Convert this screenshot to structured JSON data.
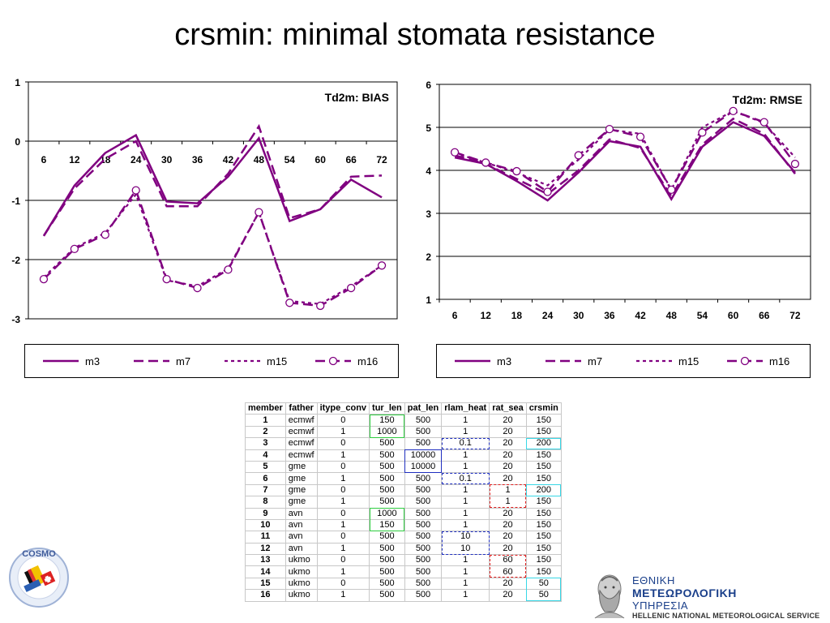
{
  "title": "crsmin: minimal stomata resistance",
  "chart_data": [
    {
      "type": "line",
      "title": "Td2m: BIAS",
      "x": [
        6,
        12,
        18,
        24,
        30,
        36,
        42,
        48,
        54,
        60,
        66,
        72
      ],
      "ylim": [
        -3,
        1
      ],
      "yticks": [
        1,
        0,
        -1,
        -2,
        -3
      ],
      "grid": true,
      "legend_position": "bottom",
      "series": [
        {
          "name": "m3",
          "values": [
            -1.6,
            -0.75,
            -0.2,
            0.1,
            -1.02,
            -1.05,
            -0.6,
            0.05,
            -1.35,
            -1.15,
            -0.65,
            -0.95
          ]
        },
        {
          "name": "m7",
          "values": [
            -1.6,
            -0.8,
            -0.3,
            0.0,
            -1.1,
            -1.1,
            -0.55,
            0.25,
            -1.3,
            -1.15,
            -0.6,
            -0.58
          ]
        },
        {
          "name": "m15",
          "values": [
            -2.3,
            -1.8,
            -1.55,
            -0.9,
            -2.35,
            -2.45,
            -2.15,
            -1.2,
            -2.7,
            -2.75,
            -2.45,
            -2.1
          ]
        },
        {
          "name": "m16",
          "values": [
            -2.33,
            -1.82,
            -1.58,
            -0.83,
            -2.33,
            -2.48,
            -2.17,
            -1.2,
            -2.73,
            -2.78,
            -2.48,
            -2.1
          ]
        }
      ]
    },
    {
      "type": "line",
      "title": "Td2m: RMSE",
      "x": [
        6,
        12,
        18,
        24,
        30,
        36,
        42,
        48,
        54,
        60,
        66,
        72
      ],
      "ylim": [
        1,
        6
      ],
      "yticks": [
        6,
        5,
        4,
        3,
        2,
        1
      ],
      "grid": true,
      "legend_position": "bottom",
      "series": [
        {
          "name": "m3",
          "values": [
            4.3,
            4.15,
            3.75,
            3.3,
            3.95,
            4.68,
            4.55,
            3.33,
            4.55,
            5.12,
            4.8,
            3.95
          ]
        },
        {
          "name": "m7",
          "values": [
            4.35,
            4.15,
            3.8,
            3.45,
            4.0,
            4.72,
            4.52,
            3.4,
            4.6,
            5.2,
            4.85,
            3.92
          ]
        },
        {
          "name": "m15",
          "values": [
            4.4,
            4.18,
            3.95,
            3.65,
            4.25,
            4.95,
            4.85,
            3.55,
            5.0,
            5.38,
            5.1,
            4.3
          ]
        },
        {
          "name": "m16",
          "values": [
            4.42,
            4.18,
            3.98,
            3.5,
            4.35,
            4.96,
            4.78,
            3.55,
            4.88,
            5.38,
            5.12,
            4.15
          ]
        }
      ]
    }
  ],
  "series_colors": [
    "#800080",
    "#800080",
    "#800080",
    "#800080"
  ],
  "table": {
    "headers": [
      "member",
      "father",
      "itype_conv",
      "tur_len",
      "pat_len",
      "rlam_heat",
      "rat_sea",
      "crsmin"
    ],
    "rows": [
      [
        "1",
        "ecmwf",
        "0",
        "150",
        "500",
        "1",
        "20",
        "150"
      ],
      [
        "2",
        "ecmwf",
        "1",
        "1000",
        "500",
        "1",
        "20",
        "150"
      ],
      [
        "3",
        "ecmwf",
        "0",
        "500",
        "500",
        "0.1",
        "20",
        "200"
      ],
      [
        "4",
        "ecmwf",
        "1",
        "500",
        "10000",
        "1",
        "20",
        "150"
      ],
      [
        "5",
        "gme",
        "0",
        "500",
        "10000",
        "1",
        "20",
        "150"
      ],
      [
        "6",
        "gme",
        "1",
        "500",
        "500",
        "0.1",
        "20",
        "150"
      ],
      [
        "7",
        "gme",
        "0",
        "500",
        "500",
        "1",
        "1",
        "200"
      ],
      [
        "8",
        "gme",
        "1",
        "500",
        "500",
        "1",
        "1",
        "150"
      ],
      [
        "9",
        "avn",
        "0",
        "1000",
        "500",
        "1",
        "20",
        "150"
      ],
      [
        "10",
        "avn",
        "1",
        "150",
        "500",
        "1",
        "20",
        "150"
      ],
      [
        "11",
        "avn",
        "0",
        "500",
        "500",
        "10",
        "20",
        "150"
      ],
      [
        "12",
        "avn",
        "1",
        "500",
        "500",
        "10",
        "20",
        "150"
      ],
      [
        "13",
        "ukmo",
        "0",
        "500",
        "500",
        "1",
        "60",
        "150"
      ],
      [
        "14",
        "ukmo",
        "1",
        "500",
        "500",
        "1",
        "60",
        "150"
      ],
      [
        "15",
        "ukmo",
        "0",
        "500",
        "500",
        "1",
        "20",
        "50"
      ],
      [
        "16",
        "ukmo",
        "1",
        "500",
        "500",
        "1",
        "20",
        "50"
      ]
    ]
  },
  "logos": {
    "cosmo": {
      "name": "cosmo-logo",
      "text": "COSMO"
    },
    "hnms": {
      "line1": "ΕΘΝΙΚΗ",
      "line2": "ΜΕΤΕΩΡΟΛΟΓΙΚΗ",
      "line3": "ΥΠΗΡΕΣΙΑ",
      "line4": "HELLENIC NATIONAL METEOROLOGICAL SERVICE"
    }
  }
}
